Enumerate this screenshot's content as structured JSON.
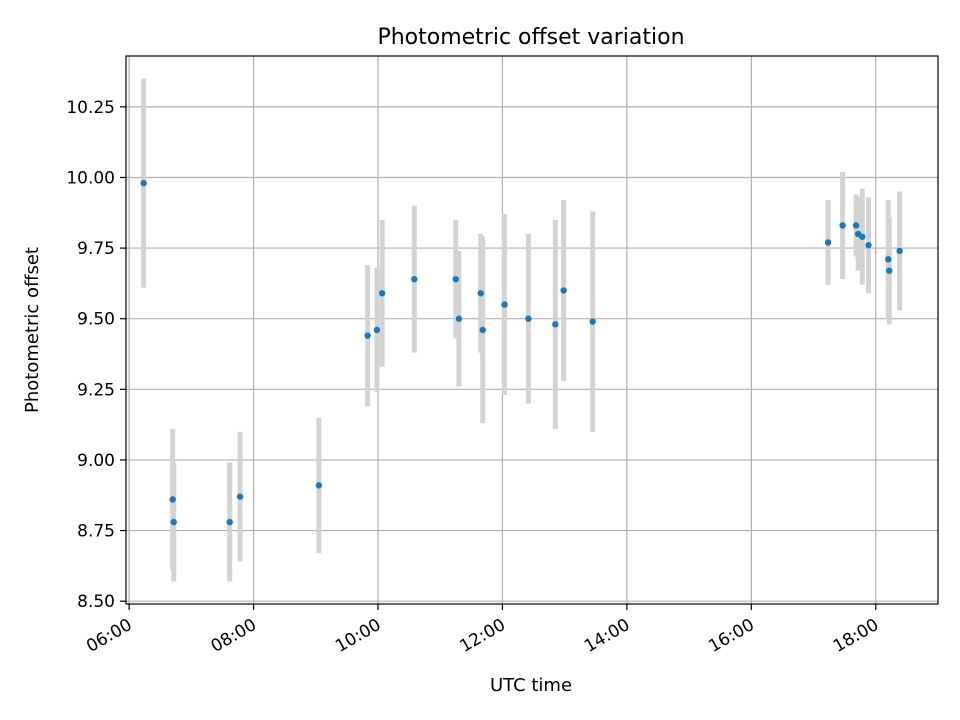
{
  "chart_data": {
    "type": "scatter",
    "title": "Photometric offset variation",
    "xlabel": "UTC time",
    "ylabel": "Photometric offset",
    "x_is_time_of_day": true,
    "xlim": [
      "05:57",
      "19:00"
    ],
    "ylim": [
      8.49,
      10.43
    ],
    "grid": true,
    "x_ticks": [
      "06:00",
      "08:00",
      "10:00",
      "12:00",
      "14:00",
      "16:00",
      "18:00"
    ],
    "y_ticks": [
      "8.50",
      "8.75",
      "9.00",
      "9.25",
      "9.50",
      "9.75",
      "10.00",
      "10.25"
    ],
    "marker_color": "#1f77b4",
    "errorbar_color": "#d3d3d3",
    "points": [
      {
        "t": "06:14",
        "y": 9.98,
        "err": 0.37
      },
      {
        "t": "06:42",
        "y": 8.86,
        "err": 0.25
      },
      {
        "t": "06:43",
        "y": 8.78,
        "err": 0.21
      },
      {
        "t": "07:37",
        "y": 8.78,
        "err": 0.21
      },
      {
        "t": "07:47",
        "y": 8.87,
        "err": 0.23
      },
      {
        "t": "09:03",
        "y": 8.91,
        "err": 0.24
      },
      {
        "t": "09:50",
        "y": 9.44,
        "err": 0.25
      },
      {
        "t": "09:59",
        "y": 9.46,
        "err": 0.22
      },
      {
        "t": "10:04",
        "y": 9.59,
        "err": 0.26
      },
      {
        "t": "10:35",
        "y": 9.64,
        "err": 0.26
      },
      {
        "t": "11:15",
        "y": 9.64,
        "err": 0.21
      },
      {
        "t": "11:18",
        "y": 9.5,
        "err": 0.24
      },
      {
        "t": "11:39",
        "y": 9.59,
        "err": 0.21
      },
      {
        "t": "11:41",
        "y": 9.46,
        "err": 0.33
      },
      {
        "t": "12:02",
        "y": 9.55,
        "err": 0.32
      },
      {
        "t": "12:25",
        "y": 9.5,
        "err": 0.3
      },
      {
        "t": "12:51",
        "y": 9.48,
        "err": 0.37
      },
      {
        "t": "12:59",
        "y": 9.6,
        "err": 0.32
      },
      {
        "t": "13:27",
        "y": 9.49,
        "err": 0.39
      },
      {
        "t": "17:14",
        "y": 9.77,
        "err": 0.15
      },
      {
        "t": "17:28",
        "y": 9.83,
        "err": 0.19
      },
      {
        "t": "17:41",
        "y": 9.83,
        "err": 0.11
      },
      {
        "t": "17:43",
        "y": 9.8,
        "err": 0.13
      },
      {
        "t": "17:47",
        "y": 9.79,
        "err": 0.17
      },
      {
        "t": "17:53",
        "y": 9.76,
        "err": 0.17
      },
      {
        "t": "18:12",
        "y": 9.71,
        "err": 0.21
      },
      {
        "t": "18:13",
        "y": 9.67,
        "err": 0.19
      },
      {
        "t": "18:23",
        "y": 9.74,
        "err": 0.21
      }
    ]
  }
}
